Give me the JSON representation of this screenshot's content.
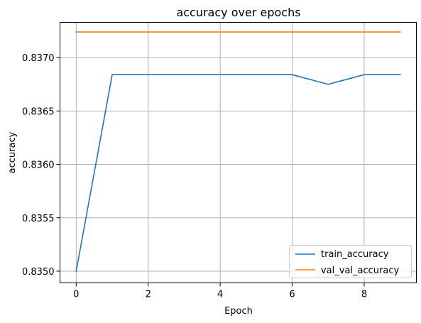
{
  "chart_data": {
    "type": "line",
    "title": "accuracy over epochs",
    "xlabel": "Epoch",
    "ylabel": "accuracy",
    "x": [
      0,
      1,
      2,
      3,
      4,
      5,
      6,
      7,
      8,
      9
    ],
    "xticks": [
      0,
      2,
      4,
      6,
      8
    ],
    "yticks": [
      0.835,
      0.8355,
      0.836,
      0.8365,
      0.837
    ],
    "ytick_labels": [
      "0.8350",
      "0.8355",
      "0.8360",
      "0.8365",
      "0.8370"
    ],
    "xlim": [
      -0.45,
      9.45
    ],
    "ylim": [
      0.83489,
      0.83733
    ],
    "grid": true,
    "legend_position": "lower-right",
    "series": [
      {
        "name": "train_accuracy",
        "color": "#1f77b4",
        "values": [
          0.835,
          0.83684,
          0.83684,
          0.83684,
          0.83684,
          0.83684,
          0.83684,
          0.83675,
          0.83684,
          0.83684
        ]
      },
      {
        "name": "val_val_accuracy",
        "color": "#ff7f0e",
        "values": [
          0.83724,
          0.83724,
          0.83724,
          0.83724,
          0.83724,
          0.83724,
          0.83724,
          0.83724,
          0.83724,
          0.83724
        ]
      }
    ]
  }
}
